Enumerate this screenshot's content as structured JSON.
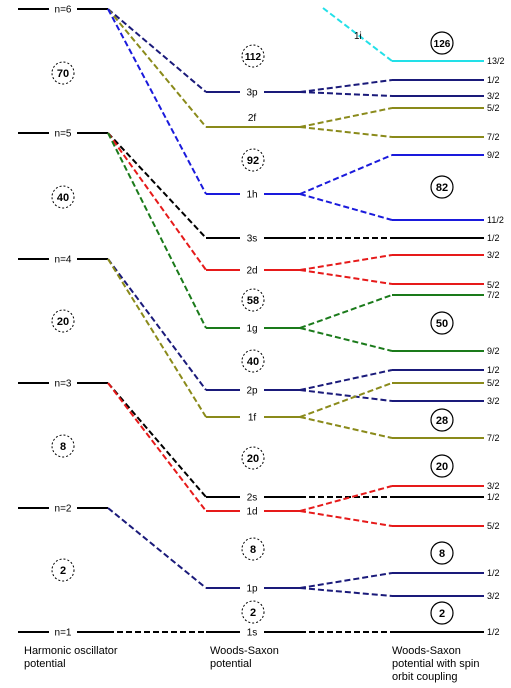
{
  "columns": {
    "left_caption": [
      "Harmonic oscillator",
      "potential"
    ],
    "middle_caption": [
      "Woods-Saxon",
      "potential"
    ],
    "right_caption": [
      "Woods-Saxon",
      "potential with spin",
      "orbit coupling"
    ]
  },
  "colors": {
    "black": "#000000",
    "navy": "#1a1a7a",
    "blue": "#1a1adc",
    "olive": "#8a8a1a",
    "green": "#1a7a1a",
    "red": "#e61a1a",
    "cyan": "#22e0e8"
  },
  "ho_levels": [
    "n=6",
    "n=5",
    "n=4",
    "n=3",
    "n=2",
    "n=1"
  ],
  "ho_magic": [
    "70",
    "40",
    "20",
    "8",
    "2"
  ],
  "ws_levels": [
    "3p",
    "2f",
    "1h",
    "3s",
    "2d",
    "1g",
    "2p",
    "1f",
    "2s",
    "1d",
    "1p",
    "1s"
  ],
  "ws_magic": [
    "112",
    "92",
    "58",
    "40",
    "20",
    "8",
    "2"
  ],
  "intruder_label": "1i",
  "so_magic": [
    "126",
    "82",
    "50",
    "28",
    "20",
    "8",
    "2"
  ],
  "so_j_labels": [
    "13/2",
    "1/2",
    "3/2",
    "5/2",
    "7/2",
    "9/2",
    "11/2",
    "1/2",
    "3/2",
    "5/2",
    "7/2",
    "9/2",
    "1/2",
    "5/2",
    "3/2",
    "7/2",
    "3/2",
    "1/2",
    "5/2",
    "1/2",
    "3/2",
    "1/2"
  ]
}
